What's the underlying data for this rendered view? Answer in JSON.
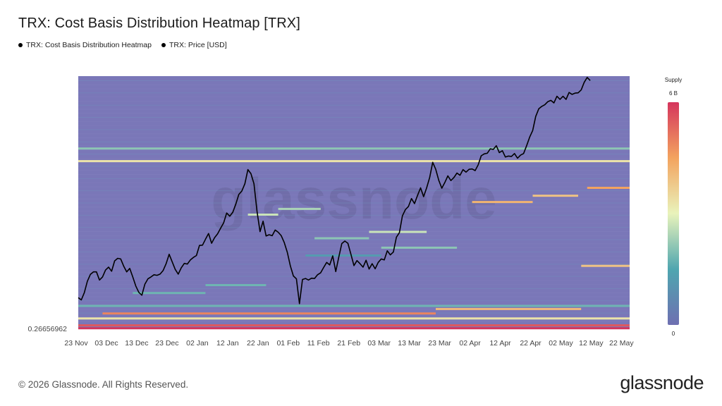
{
  "title": "TRX: Cost Basis Distribution Heatmap [TRX]",
  "legend": [
    {
      "label": "TRX: Cost Basis Distribution Heatmap"
    },
    {
      "label": "TRX: Price [USD]"
    }
  ],
  "footer": "© 2026 Glassnode. All Rights Reserved.",
  "brand": "glassnode",
  "watermark": "glassnode",
  "colors": {
    "background": "#7a77b8",
    "price_line": "#000000",
    "colormap_low": "#6e6fb1",
    "colormap_high": "#d5355d"
  },
  "chart_data": {
    "type": "heatmap",
    "title": "TRX: Cost Basis Distribution Heatmap [TRX]",
    "x_ticks": [
      "23 Nov",
      "03 Dec",
      "13 Dec",
      "23 Dec",
      "02 Jan",
      "12 Jan",
      "22 Jan",
      "01 Feb",
      "11 Feb",
      "21 Feb",
      "03 Mar",
      "13 Mar",
      "23 Mar",
      "02 Apr",
      "12 Apr",
      "22 Apr",
      "02 May",
      "12 May",
      "22 May"
    ],
    "y_axis_labels": [
      "0.26656962"
    ],
    "grid": false,
    "legend_position": "top-left",
    "colorbar": {
      "title": "Supply",
      "max_label": "6 B",
      "min_label": "0",
      "min": 0,
      "max": 6000000000
    },
    "ylim": [
      0.2666,
      0.347
    ],
    "price_series": {
      "name": "TRX: Price [USD]",
      "x": [
        0,
        1,
        2,
        3,
        4,
        5,
        6,
        7,
        8,
        9,
        10,
        11,
        12,
        13,
        14,
        15,
        16,
        17,
        18,
        19,
        20,
        21,
        22,
        23,
        24,
        25,
        26,
        27,
        28,
        29,
        30,
        31,
        32,
        33,
        34,
        35,
        36,
        37,
        38,
        39,
        40,
        41,
        42,
        43,
        44,
        45,
        46,
        47,
        48,
        49,
        50,
        51,
        52,
        53,
        54,
        55,
        56,
        57,
        58,
        59,
        60,
        61,
        62,
        63,
        64,
        65,
        66,
        67,
        68,
        69,
        70,
        71,
        72,
        73,
        74,
        75,
        76,
        77,
        78,
        79,
        80,
        81,
        82,
        83,
        84,
        85,
        86,
        87,
        88,
        89,
        90,
        91,
        92,
        93,
        94,
        95,
        96,
        97,
        98,
        99,
        100,
        101,
        102,
        103,
        104,
        105,
        106,
        107,
        108,
        109,
        110,
        111,
        112,
        113,
        114,
        115,
        116,
        117,
        118,
        119,
        120,
        121,
        122,
        123,
        124,
        125,
        126,
        127,
        128,
        129,
        130,
        131,
        132,
        133,
        134,
        135,
        136,
        137,
        138,
        139,
        140,
        141,
        142,
        143,
        144,
        145,
        146,
        147,
        148,
        149,
        150,
        151,
        152,
        153,
        154,
        155,
        156,
        157,
        158,
        159,
        160,
        161,
        162,
        163,
        164,
        165,
        166,
        167,
        168,
        169,
        170,
        171,
        172,
        173,
        174,
        175,
        176,
        177,
        178,
        179,
        180,
        181,
        182
      ],
      "y": [
        0.2766,
        0.2759,
        0.2782,
        0.2818,
        0.284,
        0.2848,
        0.2848,
        0.2822,
        0.2832,
        0.2854,
        0.2863,
        0.285,
        0.2883,
        0.2891,
        0.2889,
        0.2866,
        0.2848,
        0.2859,
        0.2832,
        0.2803,
        0.2783,
        0.2774,
        0.2809,
        0.2826,
        0.2832,
        0.2839,
        0.2837,
        0.2841,
        0.2852,
        0.2874,
        0.2904,
        0.288,
        0.2856,
        0.2841,
        0.2861,
        0.2875,
        0.2873,
        0.2886,
        0.2894,
        0.29,
        0.2932,
        0.2933,
        0.2952,
        0.297,
        0.2939,
        0.2957,
        0.2969,
        0.2987,
        0.3004,
        0.3035,
        0.3025,
        0.3037,
        0.3063,
        0.3094,
        0.3105,
        0.3128,
        0.3173,
        0.316,
        0.3128,
        0.3041,
        0.2976,
        0.3009,
        0.2962,
        0.2966,
        0.2963,
        0.2981,
        0.2974,
        0.2963,
        0.2941,
        0.291,
        0.2867,
        0.2835,
        0.2826,
        0.2747,
        0.2824,
        0.2827,
        0.2822,
        0.2828,
        0.2827,
        0.2839,
        0.2845,
        0.2862,
        0.2878,
        0.287,
        0.2899,
        0.2849,
        0.2895,
        0.2938,
        0.2946,
        0.2939,
        0.2904,
        0.2868,
        0.2884,
        0.2874,
        0.2863,
        0.2885,
        0.2857,
        0.2874,
        0.2858,
        0.2878,
        0.2889,
        0.2886,
        0.2915,
        0.2902,
        0.2911,
        0.2958,
        0.2973,
        0.3026,
        0.3046,
        0.3056,
        0.3081,
        0.3065,
        0.3091,
        0.3115,
        0.3087,
        0.3115,
        0.3148,
        0.3196,
        0.3174,
        0.3139,
        0.3114,
        0.3132,
        0.3153,
        0.3138,
        0.3148,
        0.3162,
        0.3155,
        0.3173,
        0.3165,
        0.3174,
        0.3175,
        0.317,
        0.3188,
        0.3217,
        0.3223,
        0.3225,
        0.3239,
        0.3237,
        0.3249,
        0.3227,
        0.3233,
        0.3213,
        0.3216,
        0.3215,
        0.3224,
        0.3209,
        0.3219,
        0.3224,
        0.3249,
        0.3276,
        0.3297,
        0.3342,
        0.3366,
        0.3374,
        0.3379,
        0.3389,
        0.3393,
        0.3385,
        0.3406,
        0.3396,
        0.3406,
        0.3396,
        0.3418,
        0.3412,
        0.3416,
        0.3417,
        0.3426,
        0.345,
        0.3466,
        0.3456
      ]
    },
    "bands": [
      {
        "price": 0.2669,
        "x0": 0,
        "x1": 182,
        "intensity": 1.0
      },
      {
        "price": 0.2678,
        "x0": 0,
        "x1": 182,
        "intensity": 0.92
      },
      {
        "price": 0.27,
        "x0": 0,
        "x1": 182,
        "intensity": 0.55
      },
      {
        "price": 0.2716,
        "x0": 8,
        "x1": 118,
        "intensity": 0.82
      },
      {
        "price": 0.273,
        "x0": 118,
        "x1": 166,
        "intensity": 0.68
      },
      {
        "price": 0.274,
        "x0": 0,
        "x1": 182,
        "intensity": 0.3
      },
      {
        "price": 0.2781,
        "x0": 18,
        "x1": 42,
        "intensity": 0.3
      },
      {
        "price": 0.2806,
        "x0": 42,
        "x1": 62,
        "intensity": 0.3
      },
      {
        "price": 0.2867,
        "x0": 166,
        "x1": 182,
        "intensity": 0.65
      },
      {
        "price": 0.29,
        "x0": 75,
        "x1": 100,
        "intensity": 0.2
      },
      {
        "price": 0.2925,
        "x0": 100,
        "x1": 125,
        "intensity": 0.35
      },
      {
        "price": 0.2955,
        "x0": 78,
        "x1": 96,
        "intensity": 0.35
      },
      {
        "price": 0.2975,
        "x0": 96,
        "x1": 115,
        "intensity": 0.45
      },
      {
        "price": 0.303,
        "x0": 56,
        "x1": 66,
        "intensity": 0.45
      },
      {
        "price": 0.3048,
        "x0": 66,
        "x1": 80,
        "intensity": 0.4
      },
      {
        "price": 0.307,
        "x0": 130,
        "x1": 150,
        "intensity": 0.7
      },
      {
        "price": 0.309,
        "x0": 150,
        "x1": 165,
        "intensity": 0.65
      },
      {
        "price": 0.3115,
        "x0": 168,
        "x1": 182,
        "intensity": 0.75
      },
      {
        "price": 0.32,
        "x0": 0,
        "x1": 182,
        "intensity": 0.55
      },
      {
        "price": 0.324,
        "x0": 0,
        "x1": 182,
        "intensity": 0.35
      }
    ]
  }
}
